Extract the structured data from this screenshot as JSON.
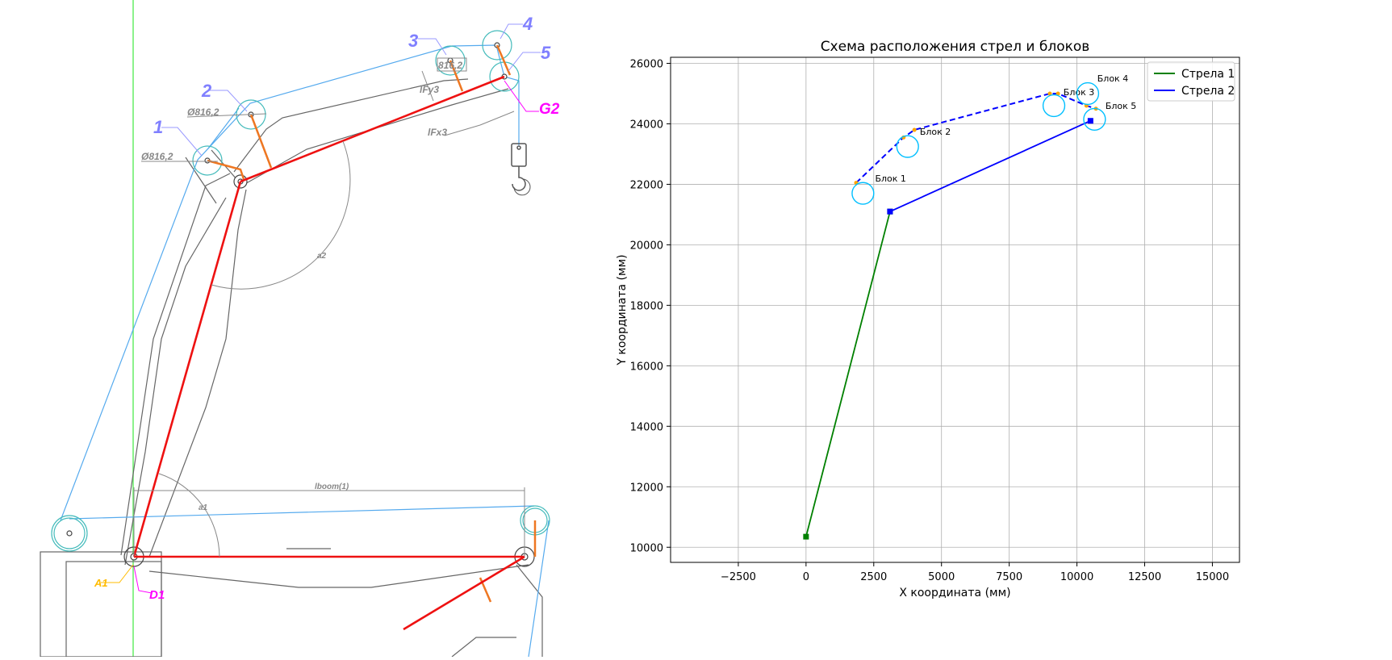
{
  "drawing": {
    "blocks": [
      "1",
      "2",
      "3",
      "4",
      "5"
    ],
    "dims": {
      "d1": "Ø816,2",
      "d2": "Ø816,2",
      "d3": "816,2",
      "lfy": "lFy3",
      "lfx": "lFx3",
      "a1": "a1",
      "a2": "a2",
      "lboom": "lboom(1)"
    },
    "points": {
      "g2": "G2",
      "a1": "A1",
      "d1": "D1"
    },
    "colors": {
      "boom": "#ee1111",
      "lever": "#ee7722",
      "rope": "#55aaee",
      "sheave": "#44bbbb",
      "structure": "#555555",
      "label": "#8080ff",
      "accent": "#ff00ff",
      "axis": "#66ee66",
      "anchor": "#ffbb00"
    }
  },
  "chart_data": {
    "type": "line",
    "title": "Схема расположения стрел и блоков",
    "xlabel": "X координата (мм)",
    "ylabel": "Y координата (мм)",
    "xlim": [
      -5000,
      16000
    ],
    "ylim": [
      9500,
      26200
    ],
    "xticks": [
      -2500,
      0,
      2500,
      5000,
      7500,
      10000,
      12500,
      15000
    ],
    "yticks": [
      10000,
      12000,
      14000,
      16000,
      18000,
      20000,
      22000,
      24000,
      26000
    ],
    "grid": true,
    "legend_position": "top-right",
    "series": [
      {
        "name": "Стрела 1",
        "color": "#008000",
        "x": [
          0,
          3100
        ],
        "y": [
          10350,
          21100
        ]
      },
      {
        "name": "Стрела 2",
        "color": "#0000ff",
        "x": [
          3100,
          10500
        ],
        "y": [
          21100,
          24100
        ]
      }
    ],
    "rope_path": {
      "color": "#0000ff",
      "style": "dashed",
      "x": [
        1850,
        3600,
        4000,
        9000,
        9300,
        10350,
        10700
      ],
      "y": [
        22050,
        23550,
        23800,
        25000,
        25000,
        24600,
        24500
      ]
    },
    "blocks": [
      {
        "label": "Блок 1",
        "x": 2100,
        "y": 21700,
        "r": 400,
        "label_x": 2550,
        "label_y": 22200
      },
      {
        "label": "Блок 2",
        "x": 3750,
        "y": 23250,
        "r": 400,
        "label_x": 4200,
        "label_y": 23750
      },
      {
        "label": "Блок 3",
        "x": 9150,
        "y": 24600,
        "r": 400,
        "label_x": 9500,
        "label_y": 25050
      },
      {
        "label": "Блок 4",
        "x": 10400,
        "y": 25000,
        "r": 400,
        "label_x": 10750,
        "label_y": 25500
      },
      {
        "label": "Блок 5",
        "x": 10650,
        "y": 24150,
        "r": 400,
        "label_x": 11050,
        "label_y": 24600
      }
    ],
    "block_color": "#00bfff",
    "contact_color": "#ffa500"
  }
}
